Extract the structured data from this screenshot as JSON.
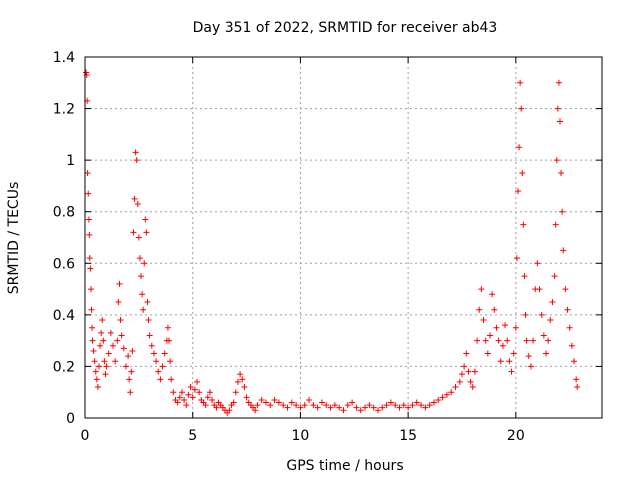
{
  "chart_data": {
    "type": "scatter",
    "title": "Day 351 of 2022, SRMTID for receiver ab43",
    "xlabel": "GPS time / hours",
    "ylabel": "SRMTID / TECUs",
    "xlim": [
      0,
      24
    ],
    "ylim": [
      0,
      1.4
    ],
    "x_ticks": [
      0,
      5,
      10,
      15,
      20
    ],
    "x_tick_labels": [
      "0",
      "5",
      "10",
      "15",
      "20"
    ],
    "y_ticks": [
      0,
      0.2,
      0.4,
      0.6,
      0.8,
      1,
      1.2,
      1.4
    ],
    "y_tick_labels": [
      "0",
      "0.2",
      "0.4",
      "0.6",
      "0.8",
      "1",
      "1.2",
      "1.4"
    ],
    "grid": true,
    "marker": "+",
    "series": [
      {
        "name": "SRMTID",
        "color": "#ff0000",
        "points": [
          [
            0.05,
            1.34
          ],
          [
            0.08,
            1.33
          ],
          [
            0.1,
            1.23
          ],
          [
            0.12,
            0.95
          ],
          [
            0.15,
            0.87
          ],
          [
            0.18,
            0.77
          ],
          [
            0.2,
            0.71
          ],
          [
            0.22,
            0.62
          ],
          [
            0.25,
            0.58
          ],
          [
            0.28,
            0.5
          ],
          [
            0.3,
            0.42
          ],
          [
            0.33,
            0.35
          ],
          [
            0.35,
            0.3
          ],
          [
            0.4,
            0.26
          ],
          [
            0.45,
            0.22
          ],
          [
            0.5,
            0.18
          ],
          [
            0.55,
            0.15
          ],
          [
            0.6,
            0.12
          ],
          [
            0.65,
            0.2
          ],
          [
            0.7,
            0.28
          ],
          [
            0.75,
            0.33
          ],
          [
            0.8,
            0.38
          ],
          [
            0.85,
            0.3
          ],
          [
            0.9,
            0.22
          ],
          [
            0.95,
            0.17
          ],
          [
            1.0,
            0.2
          ],
          [
            1.1,
            0.25
          ],
          [
            1.2,
            0.33
          ],
          [
            1.3,
            0.28
          ],
          [
            1.4,
            0.22
          ],
          [
            1.5,
            0.3
          ],
          [
            1.55,
            0.45
          ],
          [
            1.6,
            0.52
          ],
          [
            1.65,
            0.38
          ],
          [
            1.7,
            0.32
          ],
          [
            1.8,
            0.27
          ],
          [
            1.9,
            0.2
          ],
          [
            2.0,
            0.24
          ],
          [
            2.05,
            0.15
          ],
          [
            2.1,
            0.1
          ],
          [
            2.15,
            0.18
          ],
          [
            2.2,
            0.26
          ],
          [
            2.25,
            0.72
          ],
          [
            2.3,
            0.85
          ],
          [
            2.35,
            1.03
          ],
          [
            2.4,
            1.0
          ],
          [
            2.45,
            0.83
          ],
          [
            2.5,
            0.7
          ],
          [
            2.55,
            0.62
          ],
          [
            2.6,
            0.55
          ],
          [
            2.65,
            0.48
          ],
          [
            2.7,
            0.42
          ],
          [
            2.75,
            0.6
          ],
          [
            2.8,
            0.77
          ],
          [
            2.85,
            0.72
          ],
          [
            2.9,
            0.45
          ],
          [
            2.95,
            0.38
          ],
          [
            3.0,
            0.32
          ],
          [
            3.1,
            0.28
          ],
          [
            3.2,
            0.25
          ],
          [
            3.3,
            0.22
          ],
          [
            3.4,
            0.18
          ],
          [
            3.5,
            0.15
          ],
          [
            3.6,
            0.2
          ],
          [
            3.7,
            0.25
          ],
          [
            3.8,
            0.3
          ],
          [
            3.85,
            0.35
          ],
          [
            3.9,
            0.3
          ],
          [
            3.95,
            0.22
          ],
          [
            4.0,
            0.15
          ],
          [
            4.1,
            0.1
          ],
          [
            4.2,
            0.07
          ],
          [
            4.3,
            0.06
          ],
          [
            4.4,
            0.08
          ],
          [
            4.5,
            0.1
          ],
          [
            4.6,
            0.07
          ],
          [
            4.7,
            0.05
          ],
          [
            4.8,
            0.09
          ],
          [
            4.9,
            0.12
          ],
          [
            5.0,
            0.08
          ],
          [
            5.1,
            0.11
          ],
          [
            5.2,
            0.14
          ],
          [
            5.3,
            0.1
          ],
          [
            5.4,
            0.07
          ],
          [
            5.5,
            0.06
          ],
          [
            5.6,
            0.05
          ],
          [
            5.7,
            0.08
          ],
          [
            5.8,
            0.1
          ],
          [
            5.9,
            0.07
          ],
          [
            6.0,
            0.05
          ],
          [
            6.1,
            0.04
          ],
          [
            6.2,
            0.06
          ],
          [
            6.3,
            0.05
          ],
          [
            6.4,
            0.04
          ],
          [
            6.5,
            0.03
          ],
          [
            6.6,
            0.02
          ],
          [
            6.7,
            0.03
          ],
          [
            6.8,
            0.05
          ],
          [
            6.9,
            0.06
          ],
          [
            7.0,
            0.1
          ],
          [
            7.1,
            0.14
          ],
          [
            7.2,
            0.17
          ],
          [
            7.3,
            0.15
          ],
          [
            7.4,
            0.12
          ],
          [
            7.5,
            0.08
          ],
          [
            7.6,
            0.06
          ],
          [
            7.7,
            0.05
          ],
          [
            7.8,
            0.04
          ],
          [
            7.9,
            0.03
          ],
          [
            8.0,
            0.05
          ],
          [
            8.2,
            0.07
          ],
          [
            8.4,
            0.06
          ],
          [
            8.6,
            0.05
          ],
          [
            8.8,
            0.07
          ],
          [
            9.0,
            0.06
          ],
          [
            9.2,
            0.05
          ],
          [
            9.4,
            0.04
          ],
          [
            9.6,
            0.06
          ],
          [
            9.8,
            0.05
          ],
          [
            10.0,
            0.04
          ],
          [
            10.2,
            0.05
          ],
          [
            10.4,
            0.07
          ],
          [
            10.6,
            0.05
          ],
          [
            10.8,
            0.04
          ],
          [
            11.0,
            0.06
          ],
          [
            11.2,
            0.05
          ],
          [
            11.4,
            0.04
          ],
          [
            11.6,
            0.05
          ],
          [
            11.8,
            0.04
          ],
          [
            12.0,
            0.03
          ],
          [
            12.2,
            0.05
          ],
          [
            12.4,
            0.06
          ],
          [
            12.6,
            0.04
          ],
          [
            12.8,
            0.03
          ],
          [
            13.0,
            0.04
          ],
          [
            13.2,
            0.05
          ],
          [
            13.4,
            0.04
          ],
          [
            13.6,
            0.03
          ],
          [
            13.8,
            0.04
          ],
          [
            14.0,
            0.05
          ],
          [
            14.2,
            0.06
          ],
          [
            14.4,
            0.05
          ],
          [
            14.6,
            0.04
          ],
          [
            14.8,
            0.05
          ],
          [
            15.0,
            0.04
          ],
          [
            15.2,
            0.05
          ],
          [
            15.4,
            0.06
          ],
          [
            15.6,
            0.05
          ],
          [
            15.8,
            0.04
          ],
          [
            16.0,
            0.05
          ],
          [
            16.2,
            0.06
          ],
          [
            16.4,
            0.07
          ],
          [
            16.6,
            0.08
          ],
          [
            16.8,
            0.09
          ],
          [
            17.0,
            0.1
          ],
          [
            17.2,
            0.12
          ],
          [
            17.4,
            0.14
          ],
          [
            17.5,
            0.17
          ],
          [
            17.6,
            0.2
          ],
          [
            17.7,
            0.25
          ],
          [
            17.8,
            0.18
          ],
          [
            17.9,
            0.14
          ],
          [
            18.0,
            0.12
          ],
          [
            18.1,
            0.18
          ],
          [
            18.2,
            0.3
          ],
          [
            18.3,
            0.42
          ],
          [
            18.4,
            0.5
          ],
          [
            18.5,
            0.38
          ],
          [
            18.6,
            0.3
          ],
          [
            18.7,
            0.25
          ],
          [
            18.8,
            0.32
          ],
          [
            18.9,
            0.48
          ],
          [
            19.0,
            0.42
          ],
          [
            19.1,
            0.35
          ],
          [
            19.2,
            0.3
          ],
          [
            19.3,
            0.22
          ],
          [
            19.4,
            0.28
          ],
          [
            19.5,
            0.36
          ],
          [
            19.6,
            0.3
          ],
          [
            19.7,
            0.22
          ],
          [
            19.8,
            0.18
          ],
          [
            19.9,
            0.25
          ],
          [
            20.0,
            0.35
          ],
          [
            20.05,
            0.62
          ],
          [
            20.1,
            0.88
          ],
          [
            20.15,
            1.05
          ],
          [
            20.2,
            1.3
          ],
          [
            20.25,
            1.2
          ],
          [
            20.3,
            0.95
          ],
          [
            20.35,
            0.75
          ],
          [
            20.4,
            0.55
          ],
          [
            20.45,
            0.4
          ],
          [
            20.5,
            0.3
          ],
          [
            20.6,
            0.24
          ],
          [
            20.7,
            0.2
          ],
          [
            20.8,
            0.3
          ],
          [
            20.9,
            0.5
          ],
          [
            21.0,
            0.6
          ],
          [
            21.1,
            0.5
          ],
          [
            21.2,
            0.4
          ],
          [
            21.3,
            0.32
          ],
          [
            21.4,
            0.25
          ],
          [
            21.5,
            0.3
          ],
          [
            21.6,
            0.38
          ],
          [
            21.7,
            0.45
          ],
          [
            21.8,
            0.55
          ],
          [
            21.85,
            0.75
          ],
          [
            21.9,
            1.0
          ],
          [
            21.95,
            1.2
          ],
          [
            22.0,
            1.3
          ],
          [
            22.05,
            1.15
          ],
          [
            22.1,
            0.95
          ],
          [
            22.15,
            0.8
          ],
          [
            22.2,
            0.65
          ],
          [
            22.3,
            0.5
          ],
          [
            22.4,
            0.42
          ],
          [
            22.5,
            0.35
          ],
          [
            22.6,
            0.28
          ],
          [
            22.7,
            0.22
          ],
          [
            22.8,
            0.15
          ],
          [
            22.85,
            0.12
          ]
        ]
      }
    ]
  }
}
